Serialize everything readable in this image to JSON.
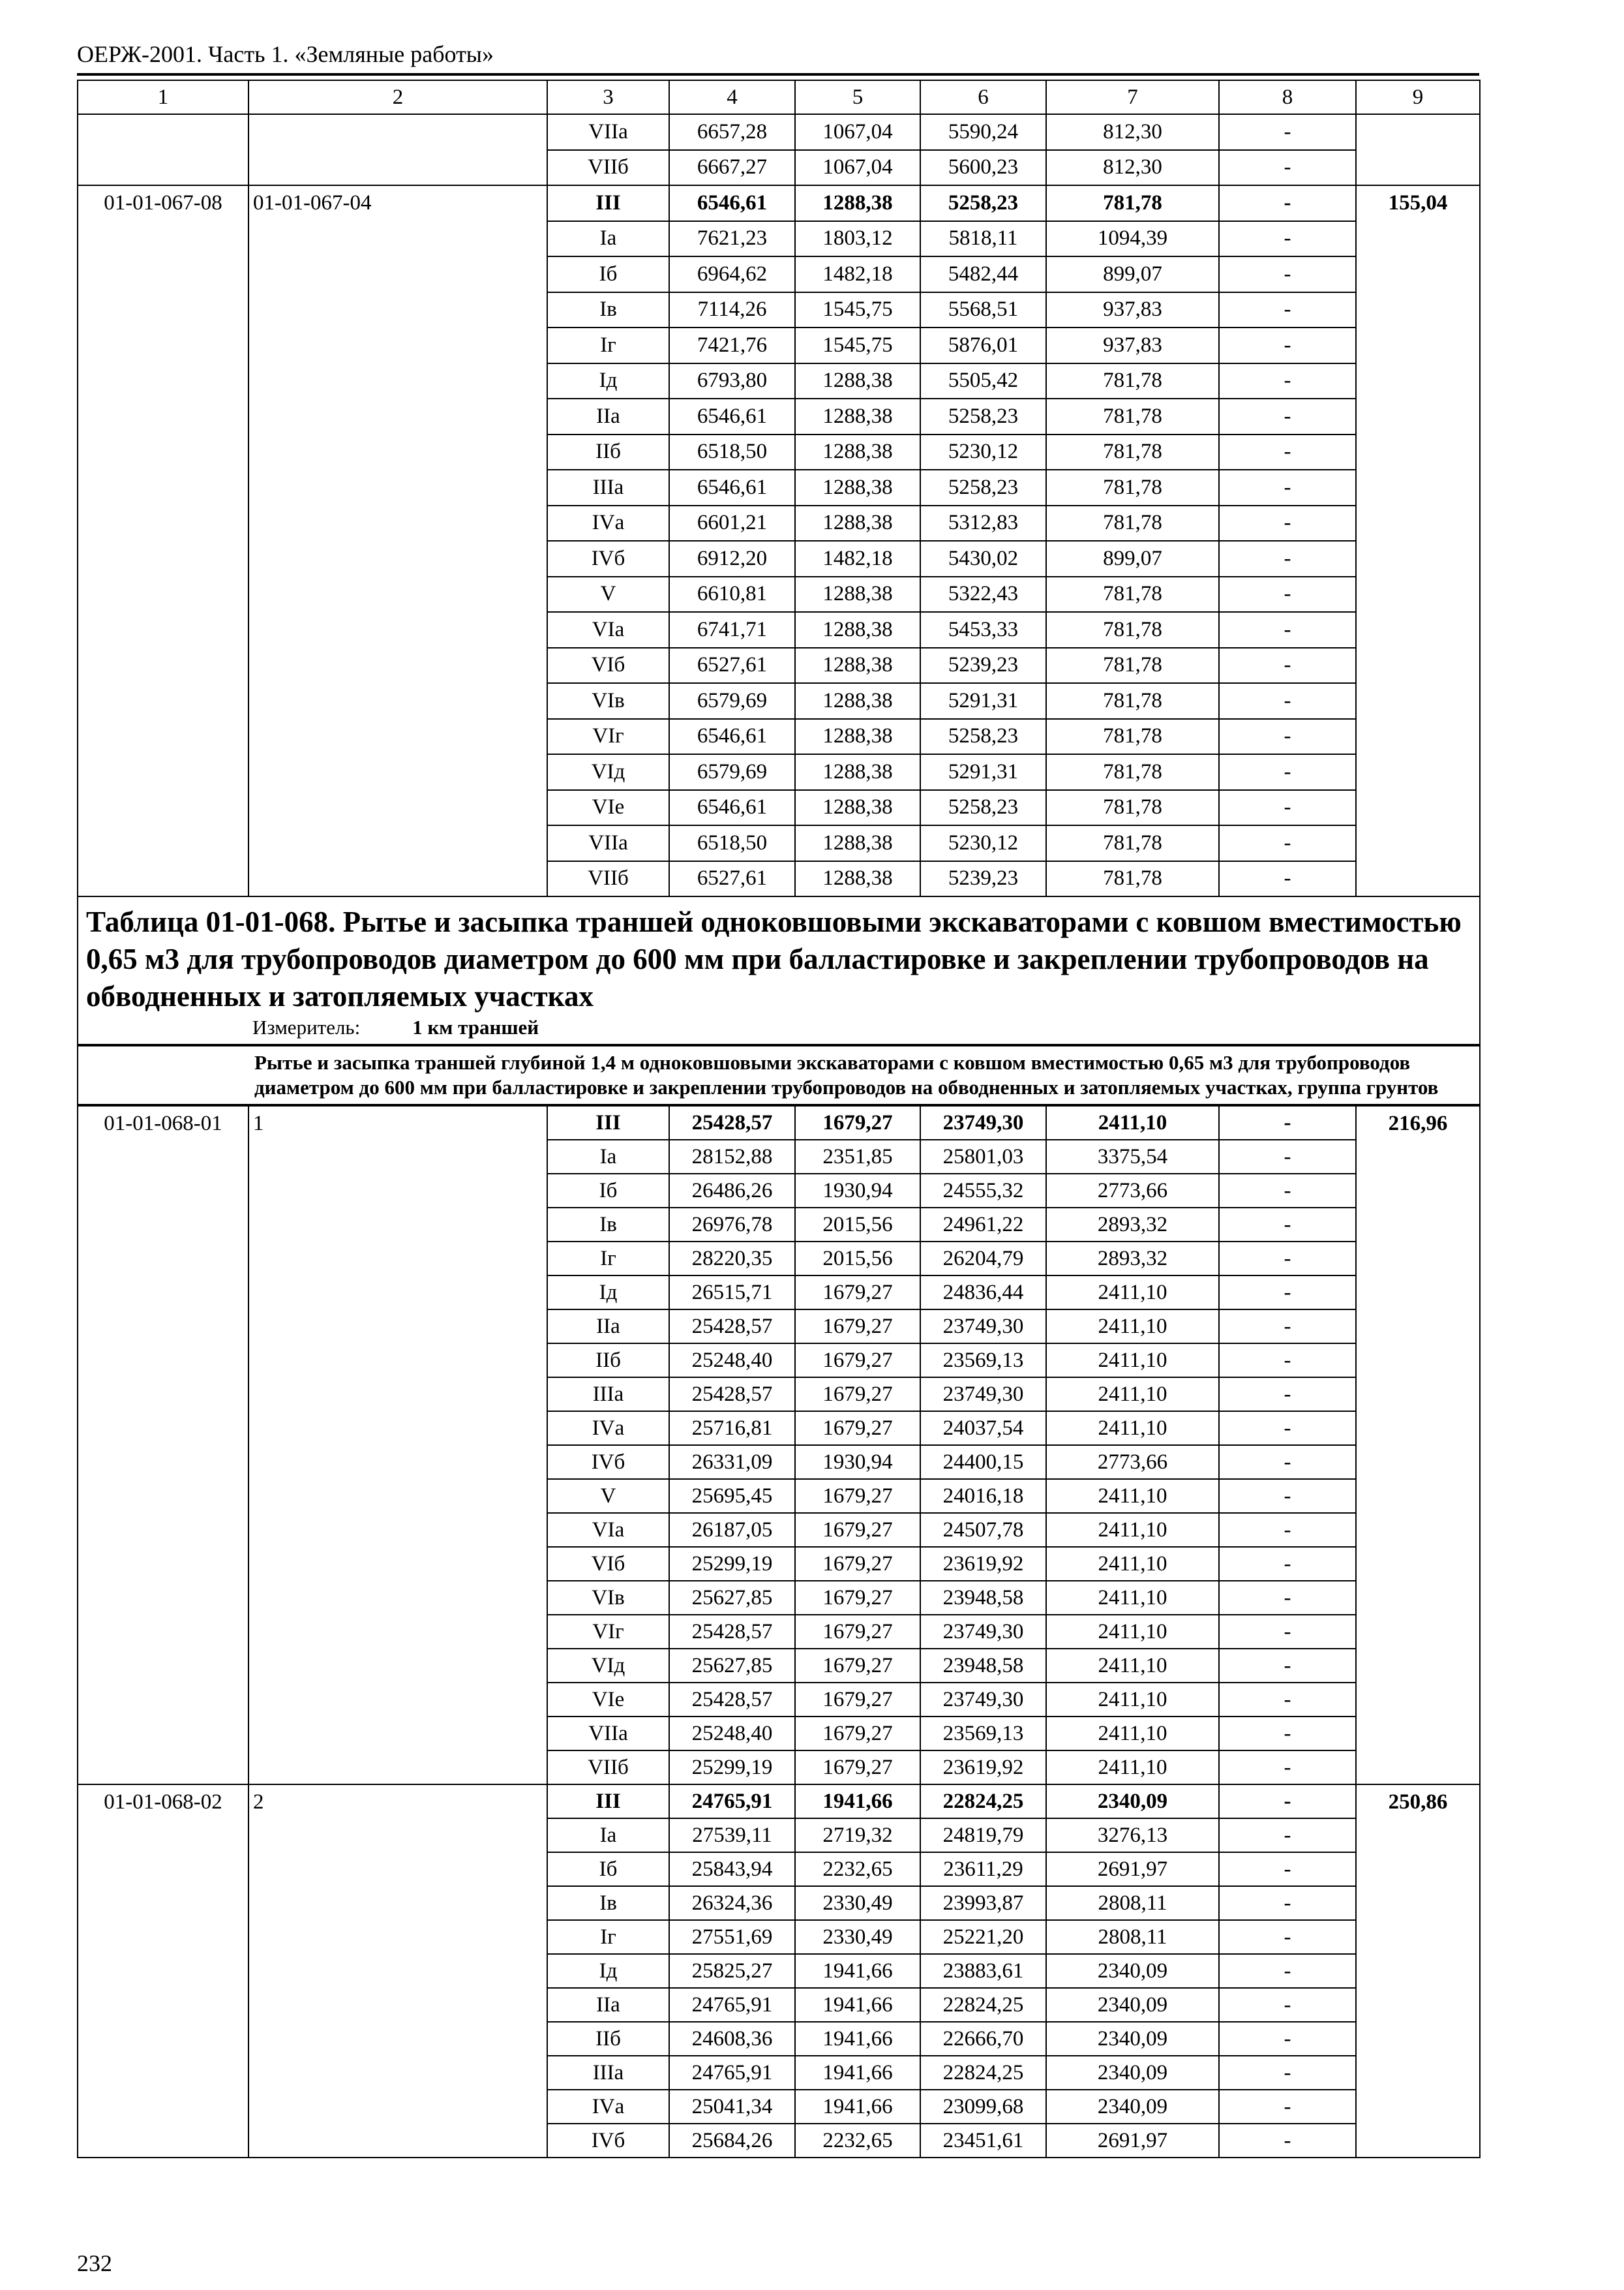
{
  "header": {
    "title": "ОЕРЖ-2001. Часть 1. «Земляные работы»"
  },
  "columns": [
    "1",
    "2",
    "3",
    "4",
    "5",
    "6",
    "7",
    "8",
    "9"
  ],
  "blocks_top": [
    {
      "code": "",
      "ref": "",
      "total": "",
      "rows": [
        [
          "VIIа",
          "6657,28",
          "1067,04",
          "5590,24",
          "812,30",
          "-"
        ],
        [
          "VIIб",
          "6667,27",
          "1067,04",
          "5600,23",
          "812,30",
          "-"
        ]
      ]
    },
    {
      "code": "01-01-067-08",
      "ref": "01-01-067-04",
      "total": "155,04",
      "rows": [
        [
          "III",
          "6546,61",
          "1288,38",
          "5258,23",
          "781,78",
          "-"
        ],
        [
          "Iа",
          "7621,23",
          "1803,12",
          "5818,11",
          "1094,39",
          "-"
        ],
        [
          "Iб",
          "6964,62",
          "1482,18",
          "5482,44",
          "899,07",
          "-"
        ],
        [
          "Iв",
          "7114,26",
          "1545,75",
          "5568,51",
          "937,83",
          "-"
        ],
        [
          "Iг",
          "7421,76",
          "1545,75",
          "5876,01",
          "937,83",
          "-"
        ],
        [
          "Iд",
          "6793,80",
          "1288,38",
          "5505,42",
          "781,78",
          "-"
        ],
        [
          "IIа",
          "6546,61",
          "1288,38",
          "5258,23",
          "781,78",
          "-"
        ],
        [
          "IIб",
          "6518,50",
          "1288,38",
          "5230,12",
          "781,78",
          "-"
        ],
        [
          "IIIа",
          "6546,61",
          "1288,38",
          "5258,23",
          "781,78",
          "-"
        ],
        [
          "IVа",
          "6601,21",
          "1288,38",
          "5312,83",
          "781,78",
          "-"
        ],
        [
          "IVб",
          "6912,20",
          "1482,18",
          "5430,02",
          "899,07",
          "-"
        ],
        [
          "V",
          "6610,81",
          "1288,38",
          "5322,43",
          "781,78",
          "-"
        ],
        [
          "VIа",
          "6741,71",
          "1288,38",
          "5453,33",
          "781,78",
          "-"
        ],
        [
          "VIб",
          "6527,61",
          "1288,38",
          "5239,23",
          "781,78",
          "-"
        ],
        [
          "VIв",
          "6579,69",
          "1288,38",
          "5291,31",
          "781,78",
          "-"
        ],
        [
          "VIг",
          "6546,61",
          "1288,38",
          "5258,23",
          "781,78",
          "-"
        ],
        [
          "VIд",
          "6579,69",
          "1288,38",
          "5291,31",
          "781,78",
          "-"
        ],
        [
          "VIе",
          "6546,61",
          "1288,38",
          "5258,23",
          "781,78",
          "-"
        ],
        [
          "VIIа",
          "6518,50",
          "1288,38",
          "5230,12",
          "781,78",
          "-"
        ],
        [
          "VIIб",
          "6527,61",
          "1288,38",
          "5239,23",
          "781,78",
          "-"
        ]
      ]
    }
  ],
  "section": {
    "title": "Таблица 01-01-068. Рытье и засыпка траншей одноковшовыми экскаваторами с ковшом вместимостью 0,65 м3 для трубопроводов диаметром до 600 мм при балластировке и закреплении трубопроводов на обводненных и затопляемых участках",
    "measure_label": "Измеритель:",
    "measure_value": "1 км траншей",
    "subtitle": "Рытье и засыпка траншей глубиной 1,4 м одноковшовыми экскаваторами с ковшом вместимостью 0,65 м3 для трубопроводов диаметром до 600 мм при балластировке и закреплении трубопроводов на обводненных и затопляемых участках, группа грунтов"
  },
  "blocks_bottom": [
    {
      "code": "01-01-068-01",
      "ref": "1",
      "total": "216,96",
      "rows": [
        [
          "III",
          "25428,57",
          "1679,27",
          "23749,30",
          "2411,10",
          "-"
        ],
        [
          "Iа",
          "28152,88",
          "2351,85",
          "25801,03",
          "3375,54",
          "-"
        ],
        [
          "Iб",
          "26486,26",
          "1930,94",
          "24555,32",
          "2773,66",
          "-"
        ],
        [
          "Iв",
          "26976,78",
          "2015,56",
          "24961,22",
          "2893,32",
          "-"
        ],
        [
          "Iг",
          "28220,35",
          "2015,56",
          "26204,79",
          "2893,32",
          "-"
        ],
        [
          "Iд",
          "26515,71",
          "1679,27",
          "24836,44",
          "2411,10",
          "-"
        ],
        [
          "IIа",
          "25428,57",
          "1679,27",
          "23749,30",
          "2411,10",
          "-"
        ],
        [
          "IIб",
          "25248,40",
          "1679,27",
          "23569,13",
          "2411,10",
          "-"
        ],
        [
          "IIIа",
          "25428,57",
          "1679,27",
          "23749,30",
          "2411,10",
          "-"
        ],
        [
          "IVа",
          "25716,81",
          "1679,27",
          "24037,54",
          "2411,10",
          "-"
        ],
        [
          "IVб",
          "26331,09",
          "1930,94",
          "24400,15",
          "2773,66",
          "-"
        ],
        [
          "V",
          "25695,45",
          "1679,27",
          "24016,18",
          "2411,10",
          "-"
        ],
        [
          "VIа",
          "26187,05",
          "1679,27",
          "24507,78",
          "2411,10",
          "-"
        ],
        [
          "VIб",
          "25299,19",
          "1679,27",
          "23619,92",
          "2411,10",
          "-"
        ],
        [
          "VIв",
          "25627,85",
          "1679,27",
          "23948,58",
          "2411,10",
          "-"
        ],
        [
          "VIг",
          "25428,57",
          "1679,27",
          "23749,30",
          "2411,10",
          "-"
        ],
        [
          "VIд",
          "25627,85",
          "1679,27",
          "23948,58",
          "2411,10",
          "-"
        ],
        [
          "VIе",
          "25428,57",
          "1679,27",
          "23749,30",
          "2411,10",
          "-"
        ],
        [
          "VIIа",
          "25248,40",
          "1679,27",
          "23569,13",
          "2411,10",
          "-"
        ],
        [
          "VIIб",
          "25299,19",
          "1679,27",
          "23619,92",
          "2411,10",
          "-"
        ]
      ]
    },
    {
      "code": "01-01-068-02",
      "ref": "2",
      "total": "250,86",
      "rows": [
        [
          "III",
          "24765,91",
          "1941,66",
          "22824,25",
          "2340,09",
          "-"
        ],
        [
          "Iа",
          "27539,11",
          "2719,32",
          "24819,79",
          "3276,13",
          "-"
        ],
        [
          "Iб",
          "25843,94",
          "2232,65",
          "23611,29",
          "2691,97",
          "-"
        ],
        [
          "Iв",
          "26324,36",
          "2330,49",
          "23993,87",
          "2808,11",
          "-"
        ],
        [
          "Iг",
          "27551,69",
          "2330,49",
          "25221,20",
          "2808,11",
          "-"
        ],
        [
          "Iд",
          "25825,27",
          "1941,66",
          "23883,61",
          "2340,09",
          "-"
        ],
        [
          "IIа",
          "24765,91",
          "1941,66",
          "22824,25",
          "2340,09",
          "-"
        ],
        [
          "IIб",
          "24608,36",
          "1941,66",
          "22666,70",
          "2340,09",
          "-"
        ],
        [
          "IIIа",
          "24765,91",
          "1941,66",
          "22824,25",
          "2340,09",
          "-"
        ],
        [
          "IVа",
          "25041,34",
          "1941,66",
          "23099,68",
          "2340,09",
          "-"
        ],
        [
          "IVб",
          "25684,26",
          "2232,65",
          "23451,61",
          "2691,97",
          "-"
        ]
      ]
    }
  ],
  "footer": {
    "page_number": "232"
  }
}
